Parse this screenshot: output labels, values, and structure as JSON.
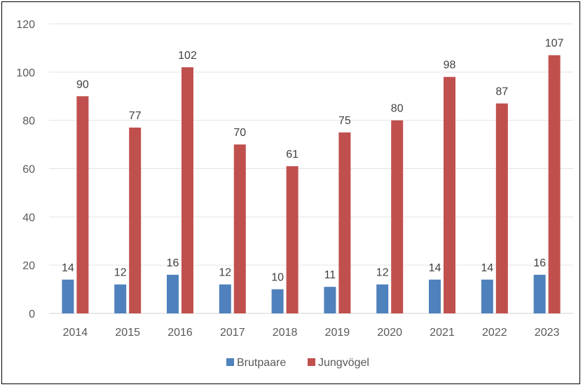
{
  "chart_data": {
    "type": "bar",
    "title": "",
    "xlabel": "",
    "ylabel": "",
    "categories": [
      "2014",
      "2015",
      "2016",
      "2017",
      "2018",
      "2019",
      "2020",
      "2021",
      "2022",
      "2023"
    ],
    "series": [
      {
        "name": "Brutpaare",
        "color": "#4F81BD",
        "values": [
          14,
          12,
          16,
          12,
          10,
          11,
          12,
          14,
          14,
          16
        ]
      },
      {
        "name": "Jungvögel",
        "color": "#C0504D",
        "values": [
          90,
          77,
          102,
          70,
          61,
          75,
          80,
          98,
          87,
          107
        ]
      }
    ],
    "ylim": [
      0,
      120
    ],
    "yticks": [
      0,
      20,
      40,
      60,
      80,
      100,
      120
    ],
    "grid": true,
    "legend": "bottom",
    "data_labels": true
  }
}
